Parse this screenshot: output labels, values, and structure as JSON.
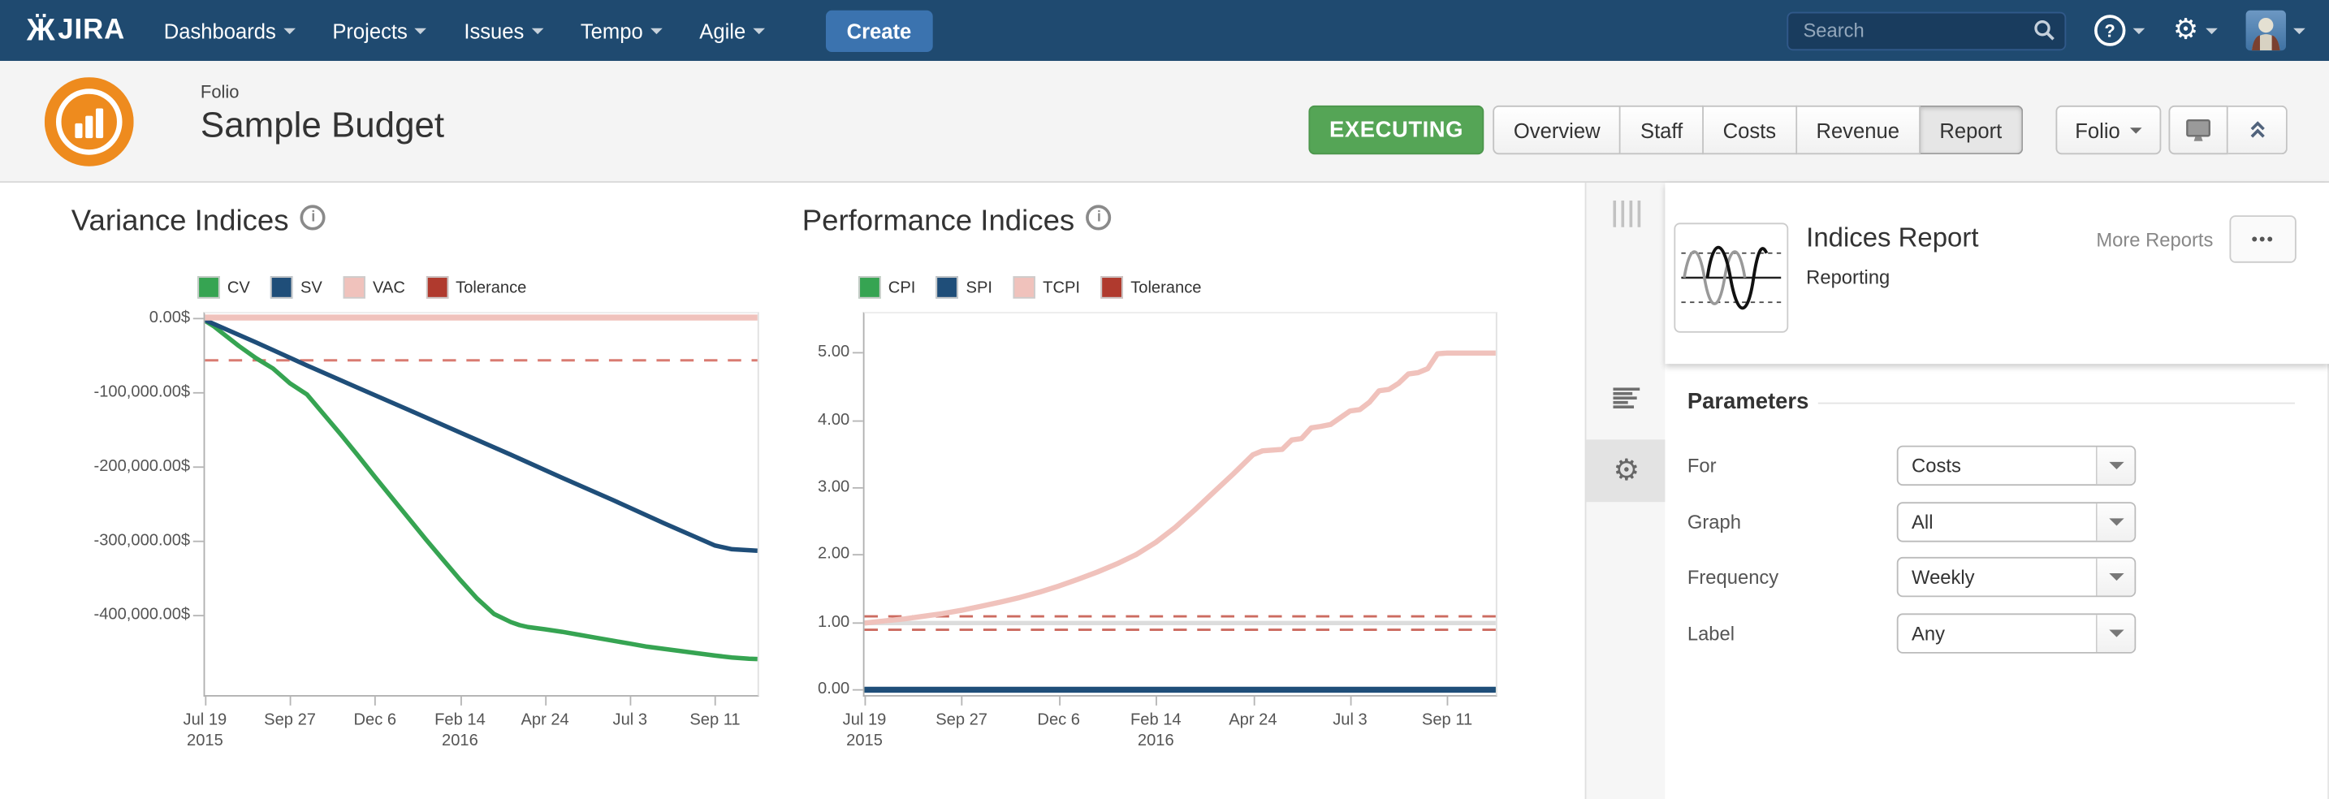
{
  "nav": {
    "logo_text": "JIRA",
    "items": [
      {
        "label": "Dashboards"
      },
      {
        "label": "Projects"
      },
      {
        "label": "Issues"
      },
      {
        "label": "Tempo"
      },
      {
        "label": "Agile"
      }
    ],
    "create_label": "Create",
    "search_placeholder": "Search"
  },
  "header": {
    "app_label": "Folio",
    "title": "Sample Budget",
    "status": "EXECUTING",
    "tabs": [
      {
        "label": "Overview",
        "active": false
      },
      {
        "label": "Staff",
        "active": false
      },
      {
        "label": "Costs",
        "active": false
      },
      {
        "label": "Revenue",
        "active": false
      },
      {
        "label": "Report",
        "active": true
      }
    ],
    "folio_menu_label": "Folio"
  },
  "rail": {
    "icons": [
      {
        "name": "drag-grip-icon",
        "selected": false
      },
      {
        "name": "report-lines-icon",
        "selected": false
      },
      {
        "name": "settings-gear-icon",
        "selected": true
      }
    ]
  },
  "sidebar": {
    "report_card": {
      "title": "Indices Report",
      "category": "Reporting",
      "more_link": "More Reports",
      "menu_button": "•••"
    },
    "parameters": {
      "heading": "Parameters",
      "rows": [
        {
          "label": "For",
          "value": "Costs"
        },
        {
          "label": "Graph",
          "value": "All"
        },
        {
          "label": "Frequency",
          "value": "Weekly"
        },
        {
          "label": "Label",
          "value": "Any"
        }
      ]
    }
  },
  "colors": {
    "navbar_blue": "#1F4A70",
    "create_blue": "#3B73AF",
    "executing_green": "#55A556",
    "folio_orange": "#EE8B1E",
    "cv_green": "#36A452",
    "sv_blue": "#1F4E79",
    "vac_pink": "#F0C2BC",
    "tolerance_red": "#B03A2E",
    "tolerance_dash": "#D97B72"
  },
  "chart_data": [
    {
      "type": "line",
      "title": "Variance Indices",
      "x_unit": "weeks since Jul 19 2015",
      "xlim": [
        0,
        65
      ],
      "ylim": [
        -505000,
        8000
      ],
      "grid": false,
      "legend_position": "top",
      "legend": [
        {
          "label": "CV",
          "color": "#36A452"
        },
        {
          "label": "SV",
          "color": "#1F4E79"
        },
        {
          "label": "VAC",
          "color": "#F0C2BC"
        },
        {
          "label": "Tolerance",
          "color": "#B03A2E"
        }
      ],
      "y_ticks": [
        {
          "v": 0,
          "label": "0.00$"
        },
        {
          "v": -100000,
          "label": "-100,000.00$"
        },
        {
          "v": -200000,
          "label": "-200,000.00$"
        },
        {
          "v": -300000,
          "label": "-300,000.00$"
        },
        {
          "v": -400000,
          "label": "-400,000.00$"
        }
      ],
      "x_ticks": [
        {
          "w": 0,
          "label": "Jul 19",
          "sub": "2015"
        },
        {
          "w": 10,
          "label": "Sep 27",
          "sub": ""
        },
        {
          "w": 20,
          "label": "Dec 6",
          "sub": ""
        },
        {
          "w": 30,
          "label": "Feb 14",
          "sub": "2016"
        },
        {
          "w": 40,
          "label": "Apr 24",
          "sub": ""
        },
        {
          "w": 50,
          "label": "Jul 3",
          "sub": ""
        },
        {
          "w": 60,
          "label": "Sep 11",
          "sub": ""
        }
      ],
      "series": [
        {
          "name": "Tolerance",
          "color": "#D97B72",
          "width": 1.6,
          "dash": "9 7",
          "x": [
            0,
            65
          ],
          "values": [
            -55000,
            -55000
          ]
        },
        {
          "name": "CV",
          "color": "#36A452",
          "width": 3,
          "dash": null,
          "x": [
            0,
            1,
            2,
            4,
            6,
            8,
            10,
            12,
            14,
            16,
            18,
            20,
            22,
            24,
            26,
            28,
            30,
            32,
            34,
            36,
            37,
            38,
            40,
            42,
            44,
            46,
            48,
            50,
            52,
            54,
            56,
            58,
            60,
            62,
            64,
            65
          ],
          "values": [
            -2000,
            -9000,
            -18000,
            -36000,
            -52000,
            -66000,
            -86000,
            -101000,
            -128000,
            -155000,
            -183000,
            -212000,
            -240000,
            -268000,
            -296000,
            -323000,
            -350000,
            -375000,
            -396000,
            -407000,
            -411000,
            -413500,
            -416500,
            -420000,
            -424000,
            -428000,
            -432000,
            -436000,
            -440000,
            -443000,
            -446000,
            -449000,
            -452000,
            -454500,
            -456000,
            -456500
          ]
        },
        {
          "name": "SV",
          "color": "#1F4E79",
          "width": 3,
          "dash": null,
          "x": [
            0,
            6,
            12,
            18,
            24,
            30,
            36,
            42,
            48,
            54,
            60,
            62,
            65
          ],
          "values": [
            -1000,
            -31000,
            -62000,
            -92000,
            -122000,
            -152000,
            -182000,
            -213000,
            -243000,
            -274000,
            -304000,
            -309000,
            -311000
          ]
        },
        {
          "name": "VAC",
          "color": "#F0C2BC",
          "width": 4,
          "dash": null,
          "x": [
            0,
            65
          ],
          "values": [
            2500,
            2500
          ]
        }
      ]
    },
    {
      "type": "line",
      "title": "Performance Indices",
      "x_unit": "weeks since Jul 19 2015",
      "xlim": [
        0,
        65
      ],
      "ylim": [
        -0.07,
        5.6
      ],
      "grid": false,
      "legend_position": "top",
      "legend": [
        {
          "label": "CPI",
          "color": "#36A452"
        },
        {
          "label": "SPI",
          "color": "#1F4E79"
        },
        {
          "label": "TCPI",
          "color": "#F0C2BC"
        },
        {
          "label": "Tolerance",
          "color": "#B03A2E"
        }
      ],
      "y_ticks": [
        {
          "v": 5,
          "label": "5.00"
        },
        {
          "v": 4,
          "label": "4.00"
        },
        {
          "v": 3,
          "label": "3.00"
        },
        {
          "v": 2,
          "label": "2.00"
        },
        {
          "v": 1,
          "label": "1.00"
        },
        {
          "v": 0,
          "label": "0.00"
        }
      ],
      "x_ticks": [
        {
          "w": 0,
          "label": "Jul 19",
          "sub": "2015"
        },
        {
          "w": 10,
          "label": "Sep 27",
          "sub": ""
        },
        {
          "w": 20,
          "label": "Dec 6",
          "sub": ""
        },
        {
          "w": 30,
          "label": "Feb 14",
          "sub": "2016"
        },
        {
          "w": 40,
          "label": "Apr 24",
          "sub": ""
        },
        {
          "w": 50,
          "label": "Jul 3",
          "sub": ""
        },
        {
          "w": 60,
          "label": "Sep 11",
          "sub": ""
        }
      ],
      "series": [
        {
          "name": "Reference 1.00",
          "color": "#dcdcdc",
          "width": 3,
          "dash": null,
          "x": [
            0,
            65
          ],
          "values": [
            1,
            1
          ]
        },
        {
          "name": "Tolerance upper",
          "color": "#CC6B60",
          "width": 1.6,
          "dash": "9 7",
          "x": [
            0,
            65
          ],
          "values": [
            1.1,
            1.1
          ]
        },
        {
          "name": "Tolerance lower",
          "color": "#CC6B60",
          "width": 1.6,
          "dash": "9 7",
          "x": [
            0,
            65
          ],
          "values": [
            0.9,
            0.9
          ]
        },
        {
          "name": "CPI",
          "color": "#36A452",
          "width": 3.5,
          "dash": null,
          "x": [
            0,
            65
          ],
          "values": [
            0.01,
            0.01
          ]
        },
        {
          "name": "SPI",
          "color": "#1F4E79",
          "width": 4,
          "dash": null,
          "x": [
            0,
            65
          ],
          "values": [
            0.01,
            0.01
          ]
        },
        {
          "name": "TCPI",
          "color": "#F0C2BC",
          "width": 3.5,
          "dash": null,
          "x": [
            0,
            2,
            4,
            6,
            8,
            10,
            12,
            14,
            16,
            18,
            20,
            22,
            24,
            26,
            28,
            30,
            32,
            34,
            36,
            38,
            40,
            41,
            43,
            44,
            45,
            46,
            47,
            48,
            50,
            51,
            52,
            53,
            54,
            55,
            56,
            57,
            58,
            59,
            60,
            65
          ],
          "values": [
            1.0,
            1.03,
            1.06,
            1.1,
            1.14,
            1.19,
            1.25,
            1.31,
            1.38,
            1.46,
            1.55,
            1.65,
            1.76,
            1.88,
            2.02,
            2.2,
            2.42,
            2.68,
            2.95,
            3.22,
            3.5,
            3.56,
            3.58,
            3.72,
            3.74,
            3.9,
            3.92,
            3.95,
            4.15,
            4.17,
            4.28,
            4.45,
            4.47,
            4.56,
            4.7,
            4.72,
            4.78,
            5.0,
            5.01,
            5.01
          ]
        }
      ]
    }
  ]
}
